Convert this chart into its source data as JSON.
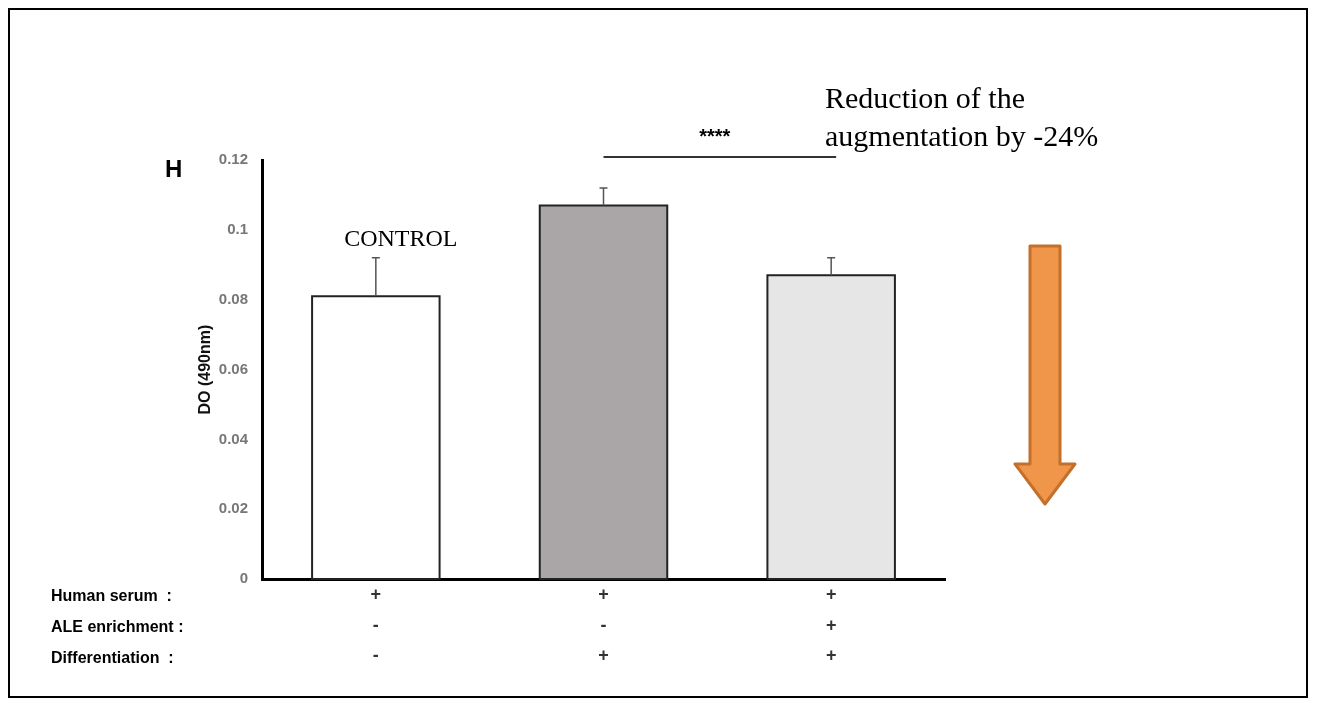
{
  "chart_data": {
    "type": "bar",
    "categories": [
      "+\n-\n-",
      "+\n-\n+",
      "+\n+\n+"
    ],
    "values": [
      0.081,
      0.107,
      0.087
    ],
    "colors": [
      "#ffffff",
      "#aaa6a7",
      "#e6e6e6"
    ],
    "errors": [
      [
        0.081,
        0.092
      ],
      [
        0.107,
        0.112
      ],
      [
        0.087,
        0.092
      ]
    ],
    "ylabel": "DO (490nm)",
    "ylim": [
      0,
      0.12
    ],
    "yticks": [
      0,
      0.02,
      0.04,
      0.06,
      0.08,
      {
        "value": 0.1,
        "label": "0.1"
      },
      0.12
    ],
    "grid": false,
    "annotations": [
      "H",
      "CONTROL",
      "****",
      "Reduction of the\naugmentation by -24%",
      "Human serum  :",
      "ALE enrichment :",
      "Differentiation  :"
    ]
  }
}
